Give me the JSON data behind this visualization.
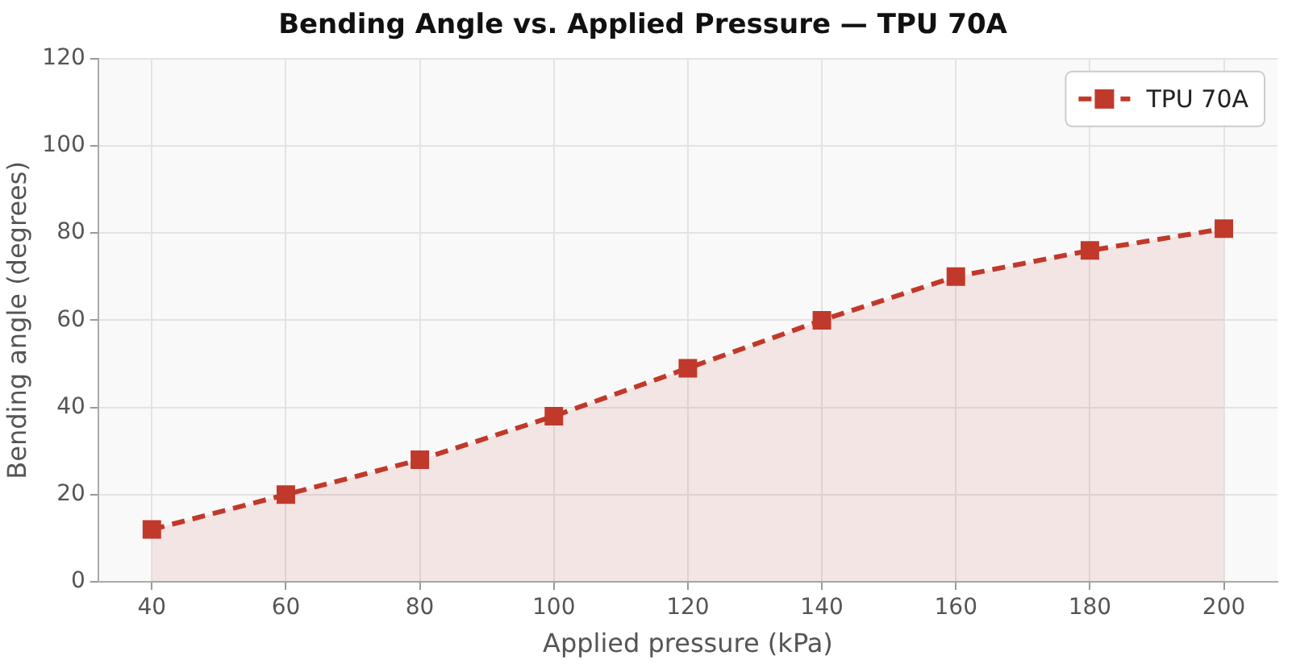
{
  "chart_data": {
    "type": "area",
    "title": "Bending Angle vs. Applied Pressure — TPU 70A",
    "xlabel": "Applied pressure (kPa)",
    "ylabel": "Bending angle (degrees)",
    "x": [
      40,
      60,
      80,
      100,
      120,
      140,
      160,
      180,
      200
    ],
    "series": [
      {
        "name": "TPU 70A",
        "color": "#c0392b",
        "values": [
          12,
          20,
          28,
          38,
          49,
          60,
          70,
          76,
          81
        ]
      }
    ],
    "xlim": [
      32,
      208
    ],
    "xticks": [
      40,
      60,
      80,
      100,
      120,
      140,
      160,
      180,
      200
    ],
    "ylim": [
      0,
      120
    ],
    "yticks": [
      0,
      20,
      40,
      60,
      80,
      100,
      120
    ],
    "grid": true,
    "legend": "top right",
    "marker": "square",
    "line_style": "dashed"
  }
}
